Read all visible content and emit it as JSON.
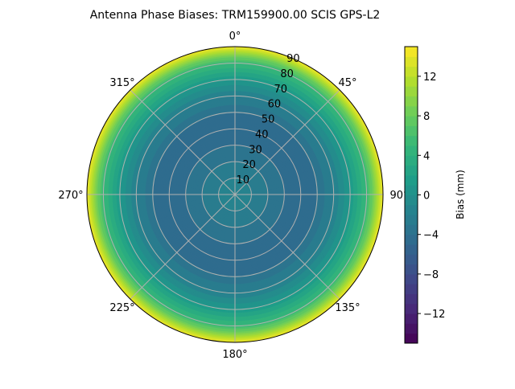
{
  "chart_data": {
    "type": "heatmap",
    "subtype": "polar-contour",
    "title": "Antenna Phase Biases: TRM159900.00    SCIS GPS-L2",
    "angular_ticks": [
      "0°",
      "45°",
      "90°",
      "135°",
      "180°",
      "225°",
      "270°",
      "315°"
    ],
    "radial_ticks": [
      "10",
      "20",
      "30",
      "40",
      "50",
      "60",
      "70",
      "80",
      "90"
    ],
    "radial_range": [
      0,
      90
    ],
    "colorbar": {
      "label": "Bias (mm)",
      "range": [
        -15,
        15
      ],
      "ticks": [
        "−12",
        "−8",
        "−4",
        "0",
        "4",
        "8",
        "12"
      ],
      "tick_values": [
        -12,
        -8,
        -4,
        0,
        4,
        8,
        12
      ],
      "level_step": 1,
      "colormap": "viridis"
    },
    "radial_profile": {
      "zenith": [
        0,
        10,
        20,
        30,
        40,
        50,
        60,
        70,
        80,
        85,
        90
      ],
      "bias_mm": [
        -1.5,
        -2,
        -3,
        -4,
        -4.5,
        -4,
        -2,
        1,
        5,
        9,
        14
      ]
    },
    "grid": true
  }
}
